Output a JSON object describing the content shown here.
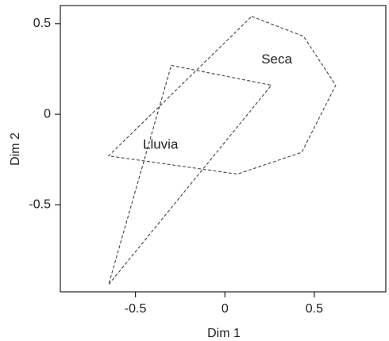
{
  "chart_data": {
    "type": "scatter",
    "title": "",
    "xlabel": "Dim 1",
    "ylabel": "Dim 2",
    "xlim": [
      -0.92,
      0.9
    ],
    "ylim": [
      -0.98,
      0.6
    ],
    "xticks": [
      {
        "value": -0.5,
        "label": "-0.5"
      },
      {
        "value": 0,
        "label": "0"
      },
      {
        "value": 0.5,
        "label": "0.5"
      }
    ],
    "yticks": [
      {
        "value": 0.5,
        "label": "0.5"
      },
      {
        "value": 0,
        "label": "0"
      },
      {
        "value": -0.5,
        "label": "-0.5"
      }
    ],
    "grid": false,
    "legend": "none",
    "hulls": [
      {
        "label": "Seca",
        "label_at": [
          0.29,
          0.3
        ],
        "line_style": "dashed",
        "color": "#444444",
        "points": [
          [
            0.15,
            0.54
          ],
          [
            0.44,
            0.43
          ],
          [
            0.62,
            0.16
          ],
          [
            0.43,
            -0.21
          ],
          [
            0.07,
            -0.33
          ],
          [
            -0.65,
            -0.23
          ]
        ]
      },
      {
        "label": "Lluvia",
        "label_at": [
          -0.36,
          -0.17
        ],
        "line_style": "dashed",
        "color": "#444444",
        "points": [
          [
            -0.3,
            0.27
          ],
          [
            0.26,
            0.16
          ],
          [
            -0.65,
            -0.94
          ]
        ]
      }
    ]
  }
}
